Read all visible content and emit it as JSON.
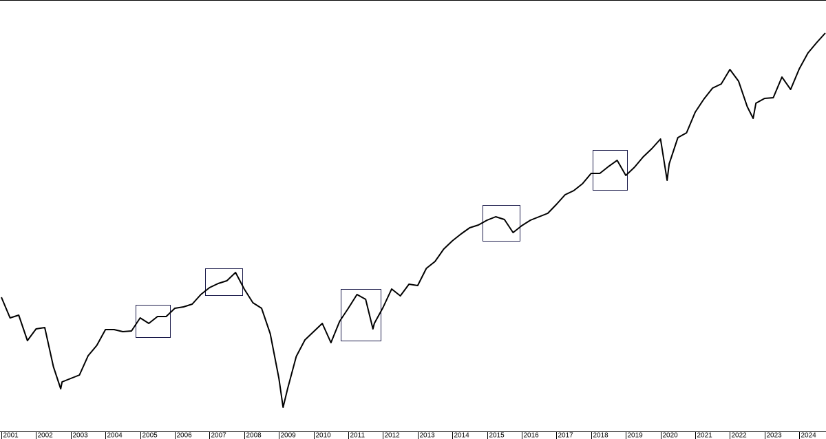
{
  "chart_data": {
    "type": "line",
    "x": [
      2001,
      2001.25,
      2001.5,
      2001.75,
      2002,
      2002.25,
      2002.5,
      2002.71,
      2002.75,
      2003,
      2003.25,
      2003.5,
      2003.75,
      2004,
      2004.25,
      2004.5,
      2004.75,
      2005,
      2005.25,
      2005.5,
      2005.75,
      2006,
      2006.25,
      2006.5,
      2006.75,
      2007,
      2007.25,
      2007.5,
      2007.75,
      2008,
      2008.25,
      2008.5,
      2008.75,
      2009,
      2009.12,
      2009.25,
      2009.5,
      2009.75,
      2010,
      2010.25,
      2010.5,
      2010.75,
      2011,
      2011.25,
      2011.5,
      2011.71,
      2011.75,
      2012,
      2012.25,
      2012.5,
      2012.75,
      2013,
      2013.25,
      2013.5,
      2013.75,
      2014,
      2014.25,
      2014.5,
      2014.75,
      2015,
      2015.25,
      2015.5,
      2015.75,
      2016,
      2016.25,
      2016.5,
      2016.75,
      2017,
      2017.25,
      2017.5,
      2017.75,
      2018,
      2018.25,
      2018.5,
      2018.75,
      2019,
      2019.25,
      2019.5,
      2019.75,
      2020,
      2020.19,
      2020.25,
      2020.5,
      2020.75,
      2021,
      2021.25,
      2021.5,
      2021.75,
      2022,
      2022.25,
      2022.5,
      2022.67,
      2022.75,
      2023,
      2023.25,
      2023.5,
      2023.75,
      2024,
      2024.25,
      2024.5,
      2024.75
    ],
    "values": [
      188,
      158,
      162,
      125,
      142,
      144,
      87,
      55,
      65,
      70,
      75,
      103,
      118,
      141,
      141,
      138,
      139,
      158,
      150,
      160,
      160,
      172,
      174,
      178,
      192,
      202,
      208,
      212,
      224,
      200,
      180,
      172,
      135,
      70,
      28,
      55,
      102,
      126,
      138,
      150,
      122,
      153,
      172,
      192,
      185,
      142,
      150,
      173,
      200,
      190,
      207,
      205,
      230,
      240,
      258,
      270,
      280,
      289,
      293,
      300,
      305,
      301,
      282,
      292,
      300,
      305,
      310,
      323,
      337,
      343,
      353,
      368,
      368,
      378,
      387,
      365,
      377,
      392,
      404,
      418,
      358,
      382,
      420,
      427,
      457,
      476,
      492,
      498,
      519,
      502,
      465,
      448,
      470,
      477,
      478,
      508,
      490,
      520,
      543,
      558,
      572
    ],
    "color": "#000000",
    "xlim": [
      2000.96,
      2024.77
    ],
    "xticks": [
      2001,
      2002,
      2003,
      2004,
      2005,
      2006,
      2007,
      2008,
      2009,
      2010,
      2011,
      2012,
      2013,
      2014,
      2015,
      2016,
      2017,
      2018,
      2019,
      2020,
      2021,
      2022,
      2023,
      2024
    ],
    "ylim": [
      0,
      620
    ]
  }
}
